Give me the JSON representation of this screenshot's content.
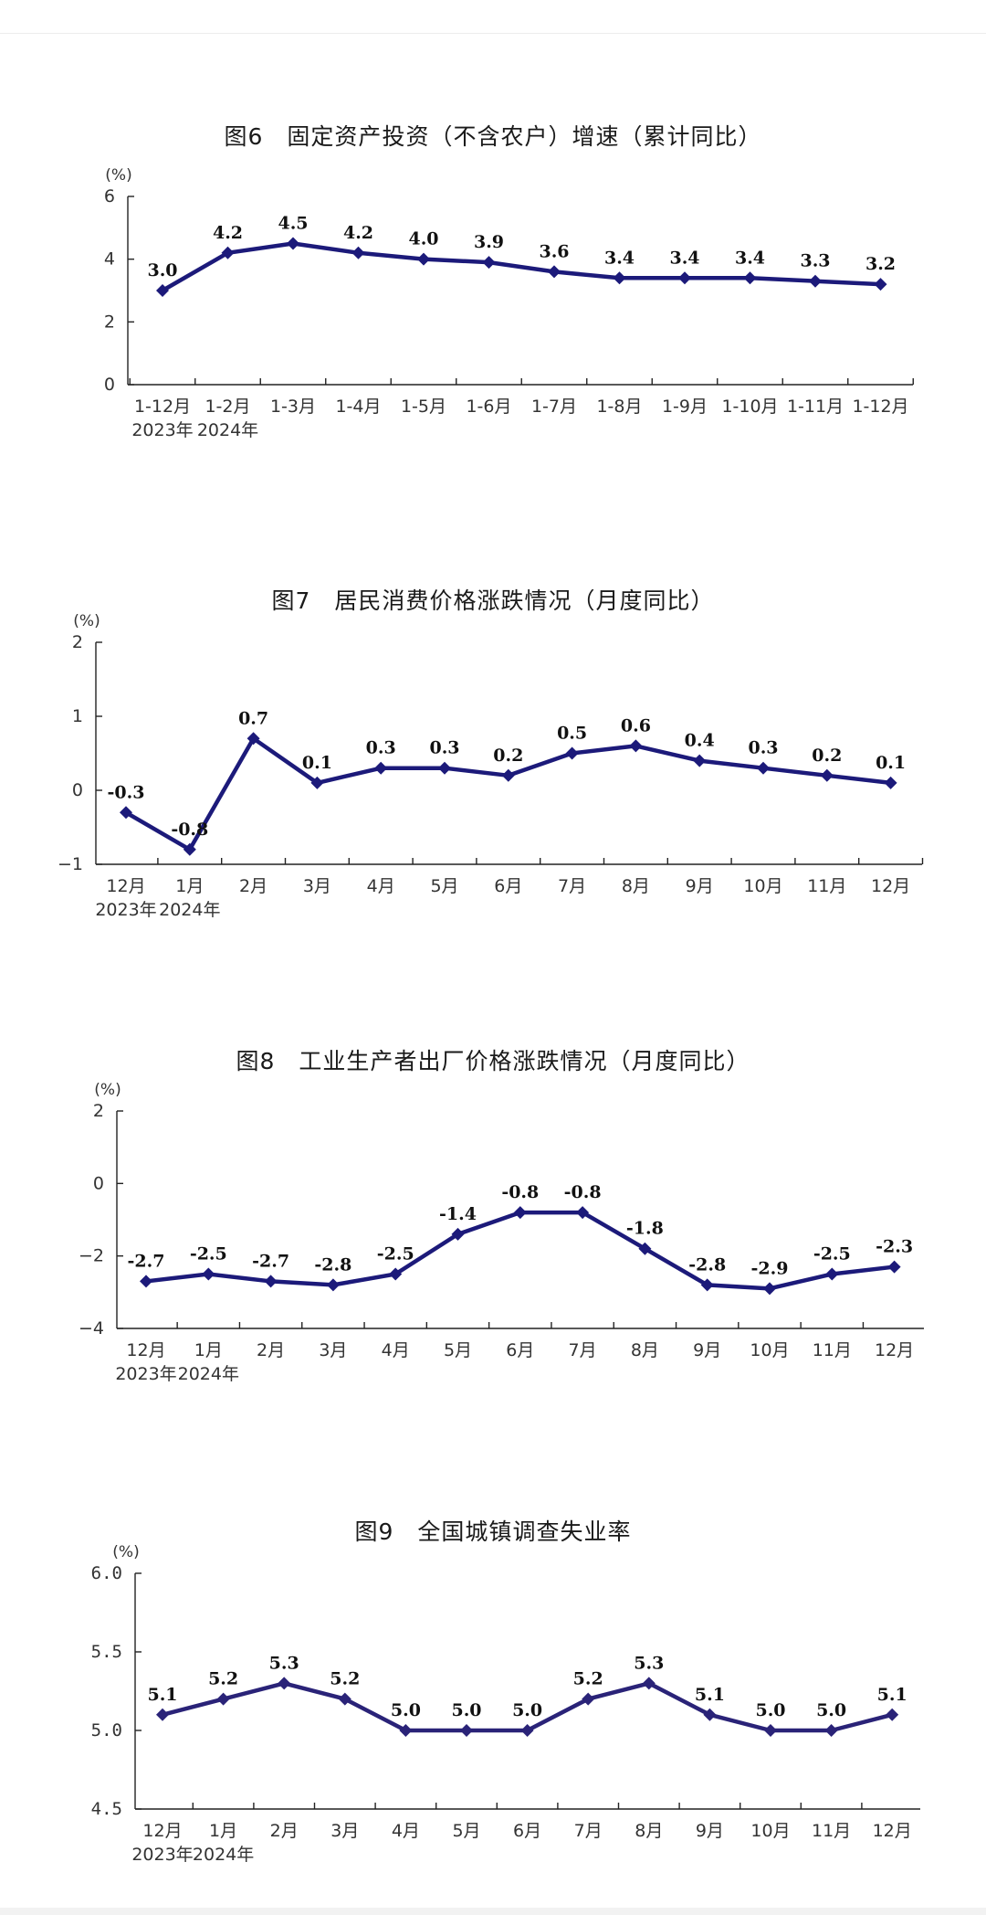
{
  "colors": {
    "line": "#1c1a7a",
    "line_alt": "#2a2378",
    "axis": "#222222"
  },
  "chart_data": [
    {
      "type": "line",
      "title": "图6　固定资产投资（不含农户）增速（累计同比）",
      "unit": "(%)",
      "categories": [
        "1-12月",
        "1-2月",
        "1-3月",
        "1-4月",
        "1-5月",
        "1-6月",
        "1-7月",
        "1-8月",
        "1-9月",
        "1-10月",
        "1-11月",
        "1-12月"
      ],
      "year_labels": [
        "2023年",
        "2024年"
      ],
      "values": [
        3.0,
        4.2,
        4.5,
        4.2,
        4.0,
        3.9,
        3.6,
        3.4,
        3.4,
        3.4,
        3.3,
        3.2
      ],
      "value_labels": [
        "3.0",
        "4.2",
        "4.5",
        "4.2",
        "4.0",
        "3.9",
        "3.6",
        "3.4",
        "3.4",
        "3.4",
        "3.3",
        "3.2"
      ],
      "ylim": [
        0,
        6
      ],
      "yticks": [
        0,
        2,
        4,
        6
      ],
      "ytick_labels": [
        "0",
        "2",
        "4",
        "6"
      ],
      "grid": false,
      "legend": "none"
    },
    {
      "type": "line",
      "title": "图7　居民消费价格涨跌情况（月度同比）",
      "unit": "(%)",
      "categories": [
        "12月",
        "1月",
        "2月",
        "3月",
        "4月",
        "5月",
        "6月",
        "7月",
        "8月",
        "9月",
        "10月",
        "11月",
        "12月"
      ],
      "year_labels": [
        "2023年",
        "2024年"
      ],
      "values": [
        -0.3,
        -0.8,
        0.7,
        0.1,
        0.3,
        0.3,
        0.2,
        0.5,
        0.6,
        0.4,
        0.3,
        0.2,
        0.1
      ],
      "value_labels": [
        "-0.3",
        "-0.8",
        "0.7",
        "0.1",
        "0.3",
        "0.3",
        "0.2",
        "0.5",
        "0.6",
        "0.4",
        "0.3",
        "0.2",
        "0.1"
      ],
      "ylim": [
        -1,
        2
      ],
      "yticks": [
        -1,
        0,
        1,
        2
      ],
      "ytick_labels": [
        "−1",
        "0",
        "1",
        "2"
      ],
      "grid": false,
      "legend": "none"
    },
    {
      "type": "line",
      "title": "图8　工业生产者出厂价格涨跌情况（月度同比）",
      "unit": "(%)",
      "categories": [
        "12月",
        "1月",
        "2月",
        "3月",
        "4月",
        "5月",
        "6月",
        "7月",
        "8月",
        "9月",
        "10月",
        "11月",
        "12月"
      ],
      "year_labels": [
        "2023年",
        "2024年"
      ],
      "values": [
        -2.7,
        -2.5,
        -2.7,
        -2.8,
        -2.5,
        -1.4,
        -0.8,
        -0.8,
        -1.8,
        -2.8,
        -2.9,
        -2.5,
        -2.3
      ],
      "value_labels": [
        "-2.7",
        "-2.5",
        "-2.7",
        "-2.8",
        "-2.5",
        "-1.4",
        "-0.8",
        "-0.8",
        "-1.8",
        "-2.8",
        "-2.9",
        "-2.5",
        "-2.3"
      ],
      "ylim": [
        -4,
        2
      ],
      "yticks": [
        -4,
        -2,
        0,
        2
      ],
      "ytick_labels": [
        "−4",
        "−2",
        "0",
        "2"
      ],
      "grid": false,
      "legend": "none"
    },
    {
      "type": "line",
      "title": "图9　全国城镇调查失业率",
      "unit": "(%)",
      "categories": [
        "12月",
        "1月",
        "2月",
        "3月",
        "4月",
        "5月",
        "6月",
        "7月",
        "8月",
        "9月",
        "10月",
        "11月",
        "12月"
      ],
      "year_labels": [
        "2023年",
        "2024年"
      ],
      "values": [
        5.1,
        5.2,
        5.3,
        5.2,
        5.0,
        5.0,
        5.0,
        5.2,
        5.3,
        5.1,
        5.0,
        5.0,
        5.1
      ],
      "value_labels": [
        "5.1",
        "5.2",
        "5.3",
        "5.2",
        "5.0",
        "5.0",
        "5.0",
        "5.2",
        "5.3",
        "5.1",
        "5.0",
        "5.0",
        "5.1"
      ],
      "ylim": [
        4.5,
        6.0
      ],
      "yticks": [
        4.5,
        5.0,
        5.5,
        6.0
      ],
      "ytick_labels": [
        "4.5",
        "5.0",
        "5.5",
        "6.0"
      ],
      "grid": false,
      "legend": "none"
    }
  ]
}
